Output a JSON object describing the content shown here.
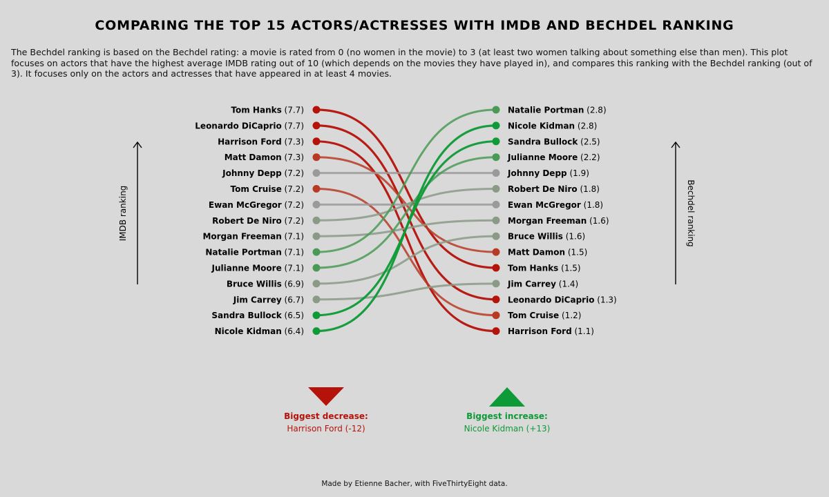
{
  "title": "COMPARING THE TOP 15 ACTORS/ACTRESSES WITH IMDB AND BECHDEL RANKING",
  "subtitle": "The Bechdel ranking is based on the Bechdel rating: a movie is rated from 0 (no women in the movie) to 3 (at least two women talking about something else than men). This plot focuses on actors that have the highest average IMDB rating out of 10 (which depends on the movies they have played in), and compares this ranking with the Bechdel ranking (out of 3). It focuses only on the actors and actresses that have appeared in at least 4 movies.",
  "caption": "Made by Etienne Bacher, with FiveThirtyEight data.",
  "colors": {
    "strong_red": "#b5120a",
    "red": "#b83a24",
    "light_red": "#b56352",
    "neutral": "#9a9a9a",
    "light_green": "#8a9a86",
    "green": "#4a9a56",
    "strong_green": "#0e9a36"
  },
  "chart_data": {
    "type": "slope",
    "left_axis_label": "IMDB ranking",
    "right_axis_label": "Bechdel ranking",
    "left_ranking": [
      {
        "name": "Tom Hanks",
        "imdb": "7.7"
      },
      {
        "name": "Leonardo DiCaprio",
        "imdb": "7.7"
      },
      {
        "name": "Harrison Ford",
        "imdb": "7.3"
      },
      {
        "name": "Matt Damon",
        "imdb": "7.3"
      },
      {
        "name": "Johnny Depp",
        "imdb": "7.2"
      },
      {
        "name": "Tom Cruise",
        "imdb": "7.2"
      },
      {
        "name": "Ewan McGregor",
        "imdb": "7.2"
      },
      {
        "name": "Robert De Niro",
        "imdb": "7.2"
      },
      {
        "name": "Morgan Freeman",
        "imdb": "7.1"
      },
      {
        "name": "Natalie Portman",
        "imdb": "7.1"
      },
      {
        "name": "Julianne Moore",
        "imdb": "7.1"
      },
      {
        "name": "Bruce Willis",
        "imdb": "6.9"
      },
      {
        "name": "Jim Carrey",
        "imdb": "6.7"
      },
      {
        "name": "Sandra Bullock",
        "imdb": "6.5"
      },
      {
        "name": "Nicole Kidman",
        "imdb": "6.4"
      }
    ],
    "right_ranking": [
      {
        "name": "Natalie Portman",
        "bechdel": "2.8"
      },
      {
        "name": "Nicole Kidman",
        "bechdel": "2.8"
      },
      {
        "name": "Sandra Bullock",
        "bechdel": "2.5"
      },
      {
        "name": "Julianne Moore",
        "bechdel": "2.2"
      },
      {
        "name": "Johnny Depp",
        "bechdel": "1.9"
      },
      {
        "name": "Robert De Niro",
        "bechdel": "1.8"
      },
      {
        "name": "Ewan McGregor",
        "bechdel": "1.8"
      },
      {
        "name": "Morgan Freeman",
        "bechdel": "1.6"
      },
      {
        "name": "Bruce Willis",
        "bechdel": "1.6"
      },
      {
        "name": "Matt Damon",
        "bechdel": "1.5"
      },
      {
        "name": "Tom Hanks",
        "bechdel": "1.5"
      },
      {
        "name": "Jim Carrey",
        "bechdel": "1.4"
      },
      {
        "name": "Leonardo DiCaprio",
        "bechdel": "1.3"
      },
      {
        "name": "Tom Cruise",
        "bechdel": "1.2"
      },
      {
        "name": "Harrison Ford",
        "bechdel": "1.1"
      }
    ],
    "biggest_decrease": {
      "label": "Biggest decrease:",
      "value": "Harrison Ford (-12)"
    },
    "biggest_increase": {
      "label": "Biggest increase:",
      "value": "Nicole Kidman (+13)"
    }
  }
}
